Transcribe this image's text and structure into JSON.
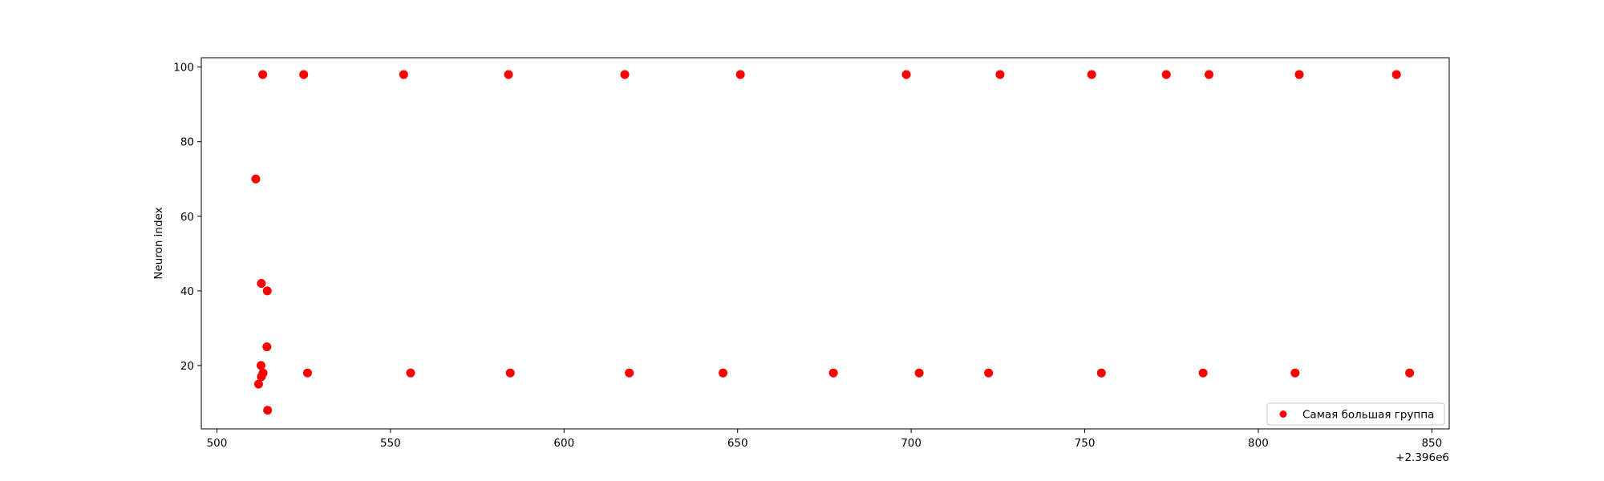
{
  "chart_data": {
    "type": "scatter",
    "title": "",
    "xlabel": "",
    "ylabel": "Neuron index",
    "x_offset_label": "+2.396e6",
    "xlim": [
      495.5,
      855
    ],
    "ylim": [
      3,
      102.5
    ],
    "xticks": [
      500,
      550,
      600,
      650,
      700,
      750,
      800,
      850
    ],
    "yticks": [
      20,
      40,
      60,
      80,
      100
    ],
    "grid": false,
    "legend_position": "lower right",
    "series": [
      {
        "name": "Самая большая группа",
        "color": "#ff0000",
        "points": [
          {
            "x": 513.2,
            "y": 98
          },
          {
            "x": 525.0,
            "y": 98
          },
          {
            "x": 553.8,
            "y": 98
          },
          {
            "x": 584.0,
            "y": 98
          },
          {
            "x": 617.5,
            "y": 98
          },
          {
            "x": 650.8,
            "y": 98
          },
          {
            "x": 698.6,
            "y": 98
          },
          {
            "x": 725.6,
            "y": 98
          },
          {
            "x": 752.0,
            "y": 98
          },
          {
            "x": 773.5,
            "y": 98
          },
          {
            "x": 785.8,
            "y": 98
          },
          {
            "x": 811.8,
            "y": 98
          },
          {
            "x": 839.8,
            "y": 98
          },
          {
            "x": 511.2,
            "y": 70
          },
          {
            "x": 512.8,
            "y": 42
          },
          {
            "x": 514.5,
            "y": 40
          },
          {
            "x": 514.4,
            "y": 25
          },
          {
            "x": 512.7,
            "y": 20
          },
          {
            "x": 513.3,
            "y": 18
          },
          {
            "x": 526.1,
            "y": 18
          },
          {
            "x": 555.8,
            "y": 18
          },
          {
            "x": 584.5,
            "y": 18
          },
          {
            "x": 618.8,
            "y": 18
          },
          {
            "x": 645.8,
            "y": 18
          },
          {
            "x": 677.6,
            "y": 18
          },
          {
            "x": 702.3,
            "y": 18
          },
          {
            "x": 722.3,
            "y": 18
          },
          {
            "x": 754.8,
            "y": 18
          },
          {
            "x": 784.1,
            "y": 18
          },
          {
            "x": 810.6,
            "y": 18
          },
          {
            "x": 843.6,
            "y": 18
          },
          {
            "x": 512.8,
            "y": 17
          },
          {
            "x": 512.0,
            "y": 15
          },
          {
            "x": 514.6,
            "y": 8
          }
        ]
      }
    ]
  }
}
